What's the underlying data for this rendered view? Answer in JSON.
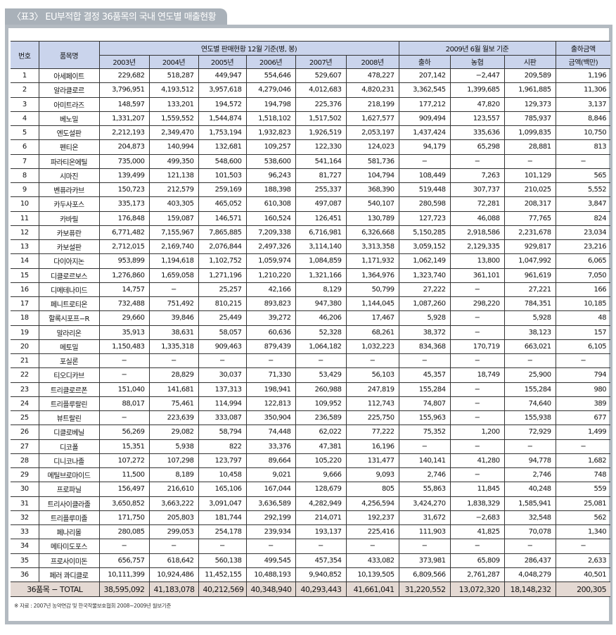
{
  "title": "〈표3〉 EU부적합 결정 36품목의 국내 연도별 매출현황",
  "header": {
    "no": "번호",
    "name": "품목명",
    "group_yearly": "연도별 판매현황 12월 기준(병, 봉)",
    "group_2009": "2009년 6월 월보 기준",
    "group_amount": "출하금액",
    "columns": [
      "2003년",
      "2004년",
      "2005년",
      "2006년",
      "2007년",
      "2008년",
      "출하",
      "농협",
      "시판",
      "금액(백만)"
    ]
  },
  "rows": [
    [
      "1",
      "아세페이트",
      "229,682",
      "518,287",
      "449,947",
      "554,646",
      "529,607",
      "478,227",
      "207,142",
      "−2,447",
      "209,589",
      "1,196"
    ],
    [
      "2",
      "알라클로르",
      "3,796,951",
      "4,193,512",
      "3,957,618",
      "4,279,046",
      "4,012,683",
      "4,820,231",
      "3,362,545",
      "1,399,685",
      "1,961,885",
      "11,306"
    ],
    [
      "3",
      "아미트라즈",
      "148,597",
      "133,201",
      "194,572",
      "194,798",
      "225,376",
      "218,199",
      "177,212",
      "47,820",
      "129,373",
      "3,137"
    ],
    [
      "4",
      "베노밀",
      "1,331,207",
      "1,559,552",
      "1,544,874",
      "1,518,102",
      "1,517,502",
      "1,627,577",
      "909,494",
      "123,557",
      "785,937",
      "8,846"
    ],
    [
      "5",
      "엔도설판",
      "2,212,193",
      "2,349,470",
      "1,753,194",
      "1,932,823",
      "1,926,519",
      "2,053,197",
      "1,437,424",
      "335,636",
      "1,099,835",
      "10,750"
    ],
    [
      "6",
      "펜티온",
      "204,873",
      "140,994",
      "132,681",
      "109,257",
      "122,330",
      "124,023",
      "94,179",
      "65,298",
      "28,881",
      "813"
    ],
    [
      "7",
      "파라티온에틸",
      "735,000",
      "499,350",
      "548,600",
      "538,600",
      "541,164",
      "581,736",
      "−",
      "−",
      "−",
      "−"
    ],
    [
      "8",
      "시마진",
      "139,499",
      "121,138",
      "101,503",
      "96,243",
      "81,727",
      "104,794",
      "108,449",
      "7,263",
      "101,129",
      "565"
    ],
    [
      "9",
      "벤퓨라카브",
      "150,723",
      "212,579",
      "259,169",
      "188,398",
      "255,337",
      "368,390",
      "519,448",
      "307,737",
      "210,025",
      "5,552"
    ],
    [
      "10",
      "카두사포스",
      "335,173",
      "403,305",
      "465,052",
      "610,308",
      "497,087",
      "540,107",
      "280,598",
      "72,281",
      "208,317",
      "3,847"
    ],
    [
      "11",
      "카바릴",
      "176,848",
      "159,087",
      "146,571",
      "160,524",
      "126,451",
      "130,789",
      "127,723",
      "46,088",
      "77,765",
      "824"
    ],
    [
      "12",
      "카보퓨란",
      "6,771,482",
      "7,155,967",
      "7,865,885",
      "7,209,338",
      "6,716,981",
      "6,326,668",
      "5,150,285",
      "2,918,586",
      "2,231,678",
      "23,034"
    ],
    [
      "13",
      "카보설판",
      "2,712,015",
      "2,169,740",
      "2,076,844",
      "2,497,326",
      "3,114,140",
      "3,313,358",
      "3,059,152",
      "2,129,335",
      "929,817",
      "23,216"
    ],
    [
      "14",
      "다이아지논",
      "953,899",
      "1,194,618",
      "1,102,752",
      "1,059,974",
      "1,084,859",
      "1,171,932",
      "1,062,149",
      "13,800",
      "1,047,992",
      "6,065"
    ],
    [
      "15",
      "디클로르보스",
      "1,276,860",
      "1,659,058",
      "1,271,196",
      "1,210,220",
      "1,321,166",
      "1,364,976",
      "1,323,740",
      "361,101",
      "961,619",
      "7,050"
    ],
    [
      "16",
      "디메테나미드",
      "14,757",
      "−",
      "25,257",
      "42,166",
      "8,129",
      "50,799",
      "27,222",
      "−",
      "27,221",
      "166"
    ],
    [
      "17",
      "페니트로티온",
      "732,488",
      "751,492",
      "810,215",
      "893,823",
      "947,380",
      "1,144,045",
      "1,087,260",
      "298,220",
      "784,351",
      "10,185"
    ],
    [
      "18",
      "할록시포프−R",
      "29,660",
      "39,846",
      "25,449",
      "39,272",
      "46,206",
      "17,467",
      "5,928",
      "−",
      "5,928",
      "48"
    ],
    [
      "19",
      "말라리온",
      "35,913",
      "38,631",
      "58,057",
      "60,636",
      "52,328",
      "68,261",
      "38,372",
      "−",
      "38,123",
      "157"
    ],
    [
      "20",
      "메토밀",
      "1,150,483",
      "1,335,318",
      "909,463",
      "879,439",
      "1,064,182",
      "1,032,223",
      "834,368",
      "170,719",
      "663,021",
      "6,105"
    ],
    [
      "21",
      "포실론",
      "−",
      "−",
      "−",
      "−",
      "−",
      "−",
      "−",
      "−",
      "−",
      "−"
    ],
    [
      "22",
      "티오디카브",
      "−",
      "28,829",
      "30,037",
      "71,330",
      "53,429",
      "56,103",
      "45,357",
      "18,749",
      "25,900",
      "794"
    ],
    [
      "23",
      "트리클로르폰",
      "151,040",
      "141,681",
      "137,313",
      "198,941",
      "260,988",
      "247,819",
      "155,284",
      "−",
      "155,284",
      "980"
    ],
    [
      "24",
      "트리플루랄린",
      "88,017",
      "75,461",
      "114,994",
      "122,813",
      "109,952",
      "112,743",
      "74,807",
      "−",
      "74,640",
      "389"
    ],
    [
      "25",
      "뷰트랄린",
      "−",
      "223,639",
      "333,087",
      "350,904",
      "236,589",
      "225,750",
      "155,963",
      "−",
      "155,938",
      "677"
    ],
    [
      "26",
      "디클로베닐",
      "56,269",
      "29,082",
      "58,794",
      "74,448",
      "62,022",
      "77,222",
      "75,352",
      "1,200",
      "72,929",
      "1,499"
    ],
    [
      "27",
      "디코폴",
      "15,351",
      "5,938",
      "822",
      "33,376",
      "47,381",
      "16,196",
      "−",
      "−",
      "−",
      "−"
    ],
    [
      "28",
      "디니코나졸",
      "107,272",
      "107,298",
      "123,797",
      "89,664",
      "105,220",
      "131,477",
      "140,141",
      "41,280",
      "94,778",
      "1,682"
    ],
    [
      "29",
      "메틸브로마이드",
      "11,500",
      "8,189",
      "10,458",
      "9,021",
      "9,666",
      "9,093",
      "2,746",
      "−",
      "2,746",
      "748"
    ],
    [
      "30",
      "프로파닐",
      "156,497",
      "216,610",
      "165,106",
      "167,044",
      "128,679",
      "805",
      "55,863",
      "11,845",
      "40,248",
      "559"
    ],
    [
      "31",
      "트리사이클라졸",
      "3,650,852",
      "3,663,222",
      "3,091,047",
      "3,636,589",
      "4,282,949",
      "4,256,594",
      "3,424,270",
      "1,838,329",
      "1,585,941",
      "25,081"
    ],
    [
      "32",
      "트리플루미졸",
      "171,750",
      "205,803",
      "181,744",
      "292,199",
      "214,071",
      "192,237",
      "31,672",
      "−2,683",
      "32,548",
      "562"
    ],
    [
      "33",
      "페나리몰",
      "280,085",
      "299,053",
      "254,178",
      "239,934",
      "193,137",
      "225,416",
      "111,903",
      "41,825",
      "70,078",
      "1,340"
    ],
    [
      "34",
      "메타미도포스",
      "−",
      "−",
      "−",
      "−",
      "−",
      "−",
      "−",
      "−",
      "−",
      "−"
    ],
    [
      "35",
      "프로사이미돈",
      "656,757",
      "618,642",
      "560,138",
      "499,545",
      "457,354",
      "433,082",
      "373,981",
      "65,809",
      "286,437",
      "2,633"
    ],
    [
      "36",
      "페러 콰디클로",
      "10,111,399",
      "10,924,486",
      "11,452,155",
      "10,488,193",
      "9,940,852",
      "10,139,505",
      "6,809,566",
      "2,761,287",
      "4,048,279",
      "40,501"
    ]
  ],
  "total": [
    "36품목 − TOTAL",
    "38,595,092",
    "41,183,078",
    "40,212,569",
    "40,348,940",
    "40,293,443",
    "41,661,041",
    "31,220,552",
    "13,072,320",
    "18,148,232",
    "200,305"
  ],
  "footnote": "※ 자료 : 2007년 농약연감 및 한국작물보호협회 2008~2009년 월보기준",
  "colors": {
    "header_bg": "#cad4ec",
    "total_bg": "#e4d9d3",
    "frame": "#b3bac1"
  }
}
